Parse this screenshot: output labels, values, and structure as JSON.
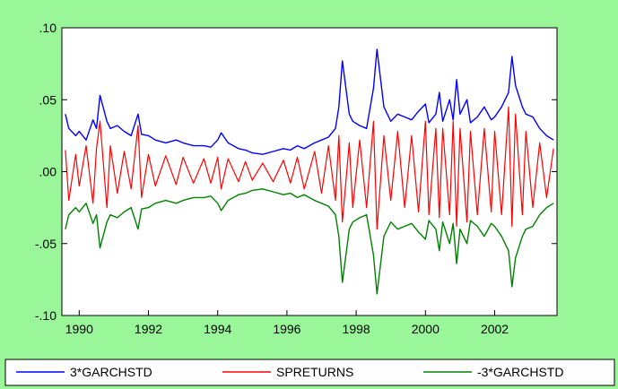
{
  "chart_data": {
    "type": "line",
    "title": "",
    "xlabel": "",
    "ylabel": "",
    "xlim": [
      1989.5,
      2003.8
    ],
    "ylim": [
      -0.1,
      0.1
    ],
    "x_ticks": [
      1990,
      1992,
      1994,
      1996,
      1998,
      2000,
      2002
    ],
    "x_tick_labels": [
      "1990",
      "1992",
      "1994",
      "1996",
      "1998",
      "2000",
      "2002"
    ],
    "y_ticks": [
      -0.1,
      -0.05,
      0.0,
      0.05,
      0.1
    ],
    "y_tick_labels": [
      "-.10",
      "-.05",
      ".00",
      ".05",
      ".10"
    ],
    "grid": false,
    "legend_position": "bottom",
    "colors": {
      "background": "#99f799",
      "plot_area": "#ffffff",
      "garch_upper": "#0000ff",
      "spreturns": "#ff0000",
      "garch_lower": "#008000"
    },
    "series": [
      {
        "name": "3*GARCHSTD",
        "color": "#0000ff",
        "x": [
          1989.6,
          1989.7,
          1989.9,
          1990.0,
          1990.2,
          1990.4,
          1990.5,
          1990.6,
          1990.8,
          1990.9,
          1991.1,
          1991.3,
          1991.5,
          1991.7,
          1991.8,
          1992.0,
          1992.2,
          1992.5,
          1992.8,
          1993.0,
          1993.3,
          1993.6,
          1993.8,
          1994.0,
          1994.1,
          1994.3,
          1994.6,
          1994.8,
          1995.0,
          1995.3,
          1995.6,
          1995.9,
          1996.1,
          1996.3,
          1996.5,
          1996.8,
          1997.0,
          1997.2,
          1997.4,
          1997.5,
          1997.6,
          1997.8,
          1997.9,
          1998.1,
          1998.3,
          1998.5,
          1998.6,
          1998.8,
          1999.0,
          1999.2,
          1999.4,
          1999.6,
          1999.8,
          2000.0,
          2000.1,
          2000.3,
          2000.4,
          2000.5,
          2000.7,
          2000.8,
          2000.9,
          2001.0,
          2001.2,
          2001.3,
          2001.5,
          2001.7,
          2001.9,
          2002.0,
          2002.2,
          2002.4,
          2002.5,
          2002.6,
          2002.8,
          2002.9,
          2003.1,
          2003.3,
          2003.5,
          2003.7
        ],
        "values": [
          0.04,
          0.03,
          0.025,
          0.028,
          0.022,
          0.036,
          0.03,
          0.053,
          0.035,
          0.03,
          0.032,
          0.028,
          0.025,
          0.04,
          0.026,
          0.025,
          0.022,
          0.02,
          0.022,
          0.02,
          0.018,
          0.018,
          0.017,
          0.022,
          0.027,
          0.02,
          0.016,
          0.015,
          0.013,
          0.012,
          0.014,
          0.016,
          0.015,
          0.018,
          0.016,
          0.02,
          0.022,
          0.024,
          0.03,
          0.045,
          0.077,
          0.04,
          0.035,
          0.032,
          0.03,
          0.058,
          0.085,
          0.045,
          0.035,
          0.04,
          0.038,
          0.036,
          0.042,
          0.047,
          0.034,
          0.04,
          0.055,
          0.035,
          0.05,
          0.036,
          0.064,
          0.04,
          0.05,
          0.034,
          0.038,
          0.045,
          0.036,
          0.038,
          0.045,
          0.055,
          0.08,
          0.06,
          0.045,
          0.04,
          0.038,
          0.03,
          0.025,
          0.022
        ]
      },
      {
        "name": "SPRETURNS",
        "color": "#ff0000",
        "x": [
          1989.6,
          1989.7,
          1989.9,
          1990.0,
          1990.2,
          1990.4,
          1990.5,
          1990.6,
          1990.8,
          1990.9,
          1991.1,
          1991.3,
          1991.5,
          1991.7,
          1991.8,
          1992.0,
          1992.2,
          1992.5,
          1992.8,
          1993.0,
          1993.3,
          1993.6,
          1993.8,
          1994.0,
          1994.1,
          1994.3,
          1994.6,
          1994.8,
          1995.0,
          1995.3,
          1995.6,
          1995.9,
          1996.1,
          1996.3,
          1996.5,
          1996.8,
          1997.0,
          1997.2,
          1997.4,
          1997.5,
          1997.6,
          1997.8,
          1997.9,
          1998.1,
          1998.3,
          1998.5,
          1998.6,
          1998.8,
          1999.0,
          1999.2,
          1999.4,
          1999.6,
          1999.8,
          2000.0,
          2000.1,
          2000.3,
          2000.4,
          2000.5,
          2000.7,
          2000.8,
          2000.9,
          2001.0,
          2001.2,
          2001.3,
          2001.5,
          2001.7,
          2001.9,
          2002.0,
          2002.2,
          2002.4,
          2002.5,
          2002.6,
          2002.8,
          2002.9,
          2003.1,
          2003.3,
          2003.5,
          2003.7
        ],
        "values": [
          0.015,
          -0.02,
          0.012,
          -0.01,
          0.018,
          -0.022,
          0.016,
          0.035,
          -0.025,
          0.018,
          -0.015,
          0.014,
          -0.012,
          0.032,
          -0.018,
          0.012,
          -0.01,
          0.011,
          -0.009,
          0.01,
          -0.008,
          0.009,
          -0.008,
          0.01,
          -0.012,
          0.009,
          -0.007,
          0.007,
          -0.006,
          0.006,
          -0.007,
          0.008,
          -0.008,
          0.01,
          -0.012,
          0.014,
          -0.015,
          0.018,
          -0.02,
          0.025,
          -0.035,
          0.02,
          -0.025,
          0.022,
          -0.025,
          0.035,
          -0.04,
          0.025,
          -0.02,
          0.028,
          -0.025,
          0.025,
          -0.028,
          0.035,
          -0.03,
          0.03,
          -0.032,
          0.03,
          -0.03,
          0.035,
          -0.038,
          0.03,
          -0.035,
          0.028,
          -0.03,
          0.03,
          -0.028,
          0.028,
          -0.03,
          0.045,
          -0.038,
          0.04,
          -0.03,
          0.028,
          -0.025,
          0.02,
          -0.018,
          0.016
        ]
      },
      {
        "name": "-3*GARCHSTD",
        "color": "#008000",
        "x": [
          1989.6,
          1989.7,
          1989.9,
          1990.0,
          1990.2,
          1990.4,
          1990.5,
          1990.6,
          1990.8,
          1990.9,
          1991.1,
          1991.3,
          1991.5,
          1991.7,
          1991.8,
          1992.0,
          1992.2,
          1992.5,
          1992.8,
          1993.0,
          1993.3,
          1993.6,
          1993.8,
          1994.0,
          1994.1,
          1994.3,
          1994.6,
          1994.8,
          1995.0,
          1995.3,
          1995.6,
          1995.9,
          1996.1,
          1996.3,
          1996.5,
          1996.8,
          1997.0,
          1997.2,
          1997.4,
          1997.5,
          1997.6,
          1997.8,
          1997.9,
          1998.1,
          1998.3,
          1998.5,
          1998.6,
          1998.8,
          1999.0,
          1999.2,
          1999.4,
          1999.6,
          1999.8,
          2000.0,
          2000.1,
          2000.3,
          2000.4,
          2000.5,
          2000.7,
          2000.8,
          2000.9,
          2001.0,
          2001.2,
          2001.3,
          2001.5,
          2001.7,
          2001.9,
          2002.0,
          2002.2,
          2002.4,
          2002.5,
          2002.6,
          2002.8,
          2002.9,
          2003.1,
          2003.3,
          2003.5,
          2003.7
        ],
        "values": [
          -0.04,
          -0.03,
          -0.025,
          -0.028,
          -0.022,
          -0.036,
          -0.03,
          -0.053,
          -0.035,
          -0.03,
          -0.032,
          -0.028,
          -0.025,
          -0.04,
          -0.026,
          -0.025,
          -0.022,
          -0.02,
          -0.022,
          -0.02,
          -0.018,
          -0.018,
          -0.017,
          -0.022,
          -0.027,
          -0.02,
          -0.016,
          -0.015,
          -0.013,
          -0.012,
          -0.014,
          -0.016,
          -0.015,
          -0.018,
          -0.016,
          -0.02,
          -0.022,
          -0.024,
          -0.03,
          -0.045,
          -0.077,
          -0.04,
          -0.035,
          -0.032,
          -0.03,
          -0.058,
          -0.085,
          -0.045,
          -0.035,
          -0.04,
          -0.038,
          -0.036,
          -0.042,
          -0.047,
          -0.034,
          -0.04,
          -0.055,
          -0.035,
          -0.05,
          -0.036,
          -0.064,
          -0.04,
          -0.05,
          -0.034,
          -0.038,
          -0.045,
          -0.036,
          -0.038,
          -0.045,
          -0.055,
          -0.08,
          -0.06,
          -0.045,
          -0.04,
          -0.038,
          -0.03,
          -0.025,
          -0.022
        ]
      }
    ]
  },
  "legend": {
    "items": [
      {
        "label": "3*GARCHSTD",
        "color": "#0000ff"
      },
      {
        "label": "SPRETURNS",
        "color": "#ff0000"
      },
      {
        "label": "-3*GARCHSTD",
        "color": "#008000"
      }
    ]
  }
}
